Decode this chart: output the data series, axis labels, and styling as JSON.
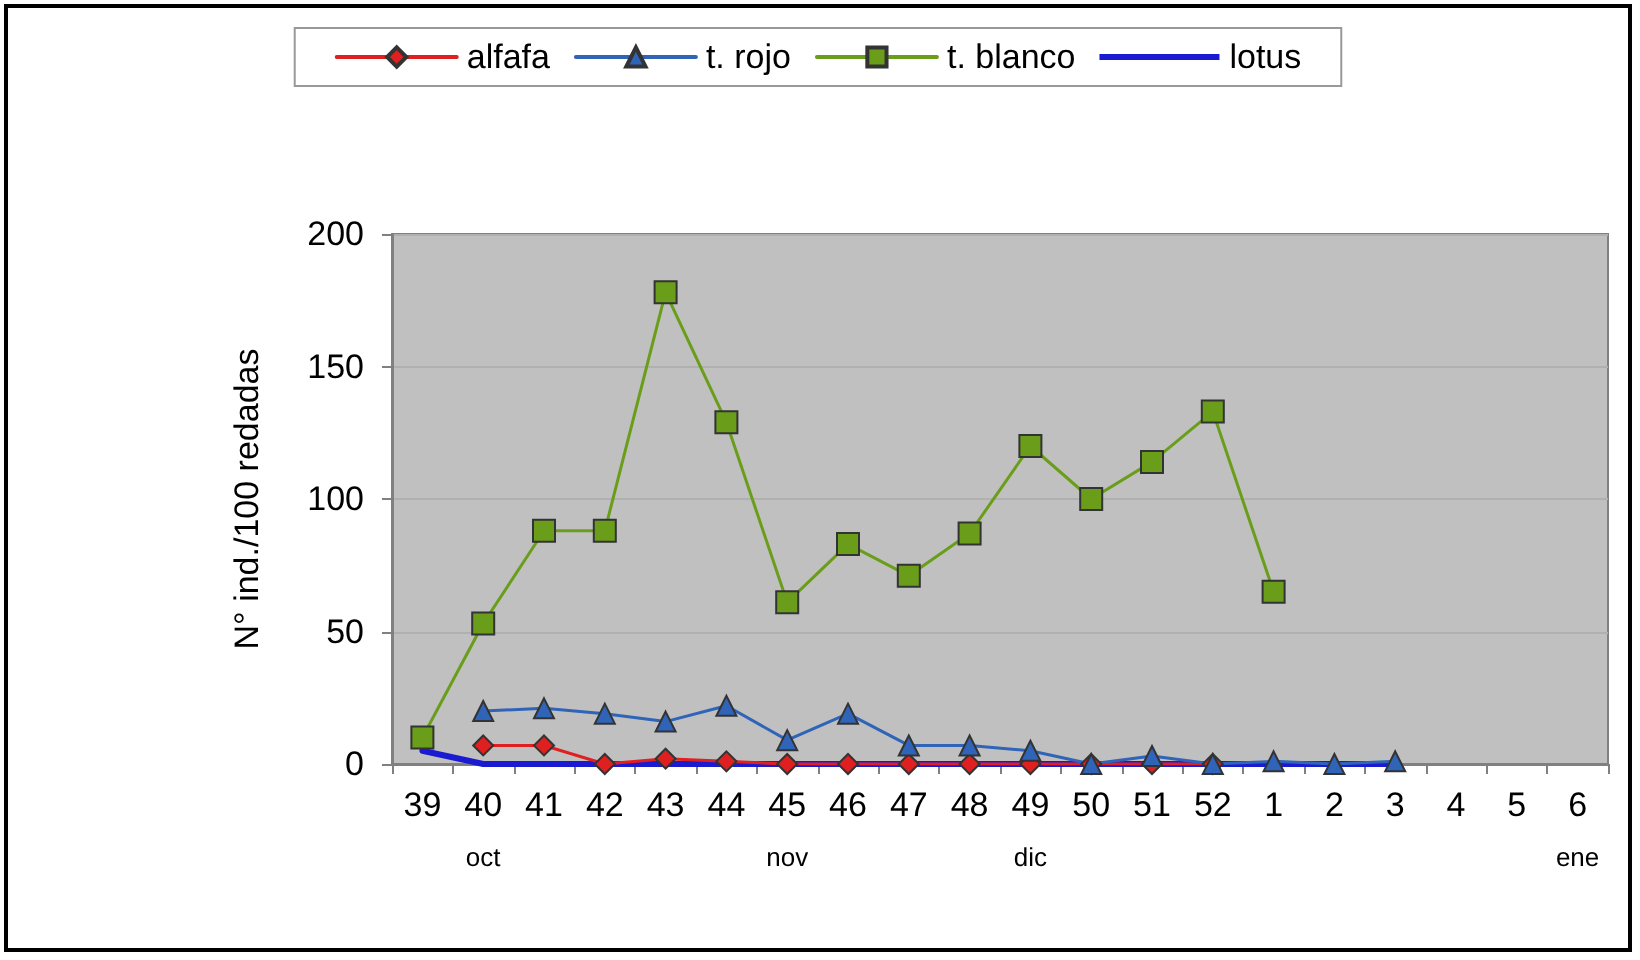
{
  "chart_data": {
    "type": "line",
    "ylabel": "N° ind./100 redadas",
    "categories": [
      "39",
      "40",
      "41",
      "42",
      "43",
      "44",
      "45",
      "46",
      "47",
      "48",
      "49",
      "50",
      "51",
      "52",
      "1",
      "2",
      "3",
      "4",
      "5",
      "6"
    ],
    "series": [
      {
        "name": "alfafa",
        "color": "#e02020",
        "marker": "diamond",
        "values": [
          null,
          7,
          7,
          0,
          2,
          1,
          0,
          0,
          0,
          0,
          0,
          0,
          0,
          0,
          null,
          null,
          null,
          null,
          null,
          null
        ]
      },
      {
        "name": "t. rojo",
        "color": "#2f64b8",
        "marker": "triangle",
        "values": [
          null,
          20,
          21,
          19,
          16,
          22,
          9,
          19,
          7,
          7,
          5,
          0,
          3,
          0,
          1,
          0,
          1,
          null,
          null,
          null
        ]
      },
      {
        "name": "t. blanco",
        "color": "#6a9e1a",
        "marker": "square",
        "values": [
          10,
          53,
          88,
          88,
          178,
          129,
          61,
          83,
          71,
          87,
          120,
          100,
          114,
          133,
          65,
          null,
          null,
          null,
          null,
          null
        ]
      },
      {
        "name": "lotus",
        "color": "#1a1ad0",
        "marker": "none",
        "values": [
          5,
          0,
          0,
          0,
          0,
          0,
          0,
          0,
          0,
          0,
          0,
          0,
          0,
          0,
          0,
          0,
          0,
          null,
          null,
          null
        ]
      }
    ],
    "ylim": [
      0,
      200
    ],
    "yticks": [
      0,
      50,
      100,
      150,
      200
    ],
    "grid": "y",
    "legend": "top",
    "annotations": [
      "oct",
      "nov",
      "dic",
      "ene"
    ]
  }
}
